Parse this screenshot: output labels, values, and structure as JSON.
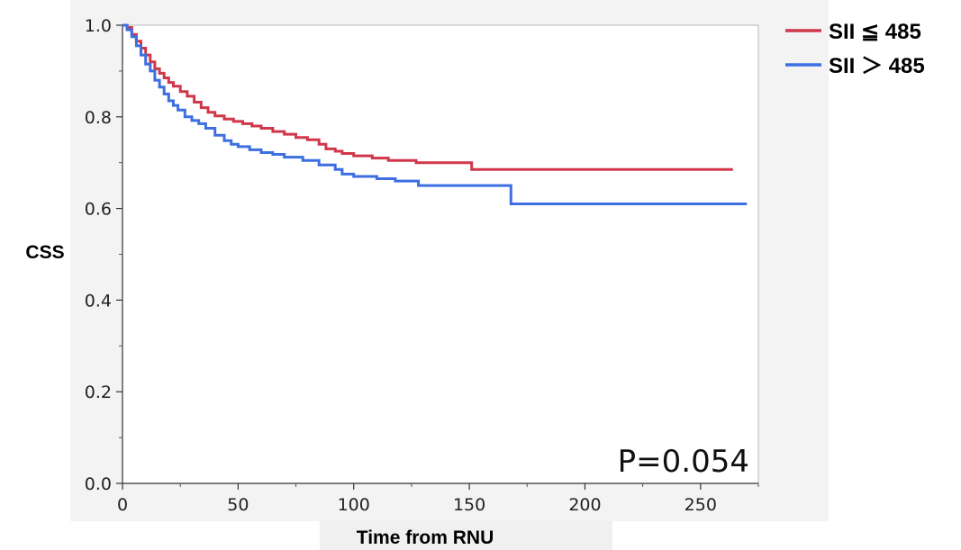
{
  "chart_data": {
    "type": "line",
    "title": "",
    "xlabel": "Time from RNU",
    "ylabel": "CSS",
    "xlim": [
      0,
      275
    ],
    "ylim": [
      0,
      1.0
    ],
    "x_ticks": [
      0,
      50,
      100,
      150,
      200,
      250
    ],
    "x_tick_labels": [
      "0",
      "50",
      "100",
      "150",
      "200",
      "250"
    ],
    "y_ticks": [
      0.0,
      0.2,
      0.4,
      0.6,
      0.8,
      1.0
    ],
    "y_tick_labels": [
      "0.0",
      "0.2",
      "0.4",
      "0.6",
      "0.8",
      "1.0"
    ],
    "grid": false,
    "legend_position": "top-right outside",
    "annotation": "P=0.054",
    "series": [
      {
        "name": "SII ≦ 485",
        "color": "#d0384a",
        "step": true,
        "x": [
          0,
          2,
          4,
          6,
          8,
          10,
          12,
          14,
          16,
          18,
          20,
          22,
          25,
          28,
          31,
          34,
          37,
          40,
          44,
          48,
          52,
          56,
          60,
          65,
          70,
          75,
          80,
          85,
          88,
          92,
          95,
          100,
          108,
          115,
          127,
          138,
          151,
          160,
          170,
          190,
          220,
          264
        ],
        "y": [
          1.0,
          0.995,
          0.98,
          0.965,
          0.95,
          0.935,
          0.92,
          0.905,
          0.895,
          0.885,
          0.875,
          0.867,
          0.855,
          0.845,
          0.832,
          0.82,
          0.81,
          0.802,
          0.795,
          0.79,
          0.785,
          0.78,
          0.775,
          0.768,
          0.762,
          0.755,
          0.75,
          0.74,
          0.73,
          0.725,
          0.72,
          0.715,
          0.71,
          0.705,
          0.7,
          0.7,
          0.685,
          0.685,
          0.685,
          0.685,
          0.685,
          0.685
        ]
      },
      {
        "name": "SII ＞ 485",
        "color": "#3d6fe0",
        "step": true,
        "x": [
          0,
          2,
          4,
          6,
          8,
          10,
          12,
          14,
          16,
          18,
          20,
          22,
          24,
          27,
          30,
          33,
          36,
          40,
          44,
          47,
          50,
          55,
          60,
          65,
          70,
          78,
          85,
          92,
          95,
          100,
          110,
          118,
          128,
          140,
          150,
          160,
          168,
          180,
          200,
          230,
          270
        ],
        "y": [
          1.0,
          0.99,
          0.975,
          0.955,
          0.935,
          0.915,
          0.9,
          0.88,
          0.865,
          0.85,
          0.835,
          0.825,
          0.815,
          0.8,
          0.792,
          0.785,
          0.775,
          0.76,
          0.748,
          0.74,
          0.735,
          0.728,
          0.722,
          0.718,
          0.712,
          0.705,
          0.695,
          0.685,
          0.675,
          0.67,
          0.665,
          0.66,
          0.65,
          0.65,
          0.65,
          0.65,
          0.61,
          0.61,
          0.61,
          0.61,
          0.61
        ]
      }
    ]
  }
}
